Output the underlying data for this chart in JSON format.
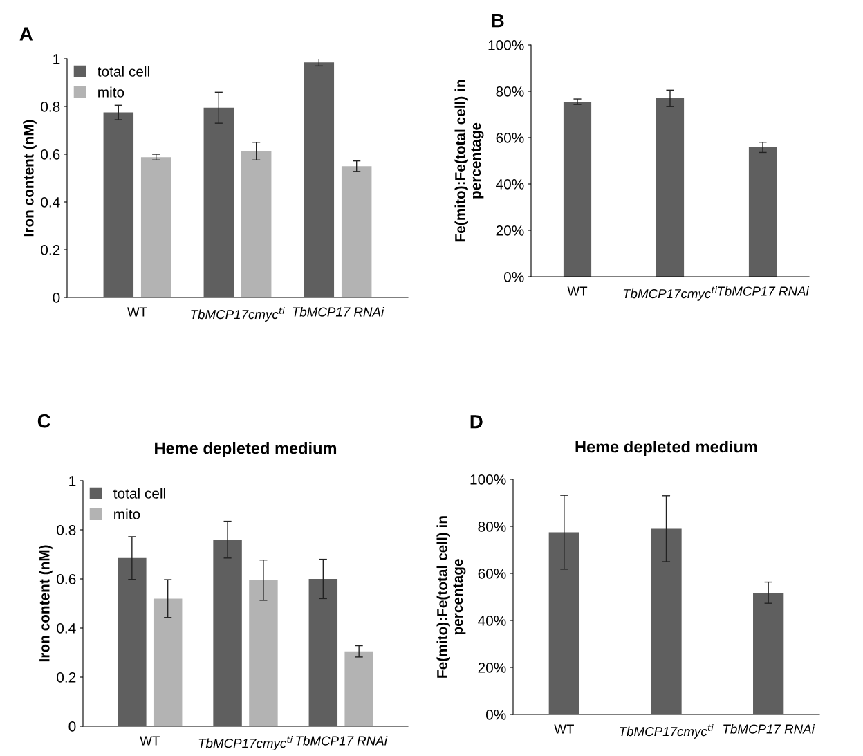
{
  "chart_data": [
    {
      "type": "bar",
      "annotations": [
        "A"
      ],
      "ylabel": "Iron content (nM)",
      "categories": [
        "WT",
        "TbMCP17cmyc$^{ti}$",
        "TbMCP17 RNAi"
      ],
      "ylim": [
        0,
        1
      ],
      "yticks": [
        0,
        0.2,
        0.4,
        0.6,
        0.8,
        1
      ],
      "legend": "top left",
      "grid": false,
      "series": [
        {
          "name": "total cell",
          "color": "#5f5f5f",
          "values": [
            0.775,
            0.795,
            0.985
          ],
          "errors": [
            0.03,
            0.065,
            0.015
          ]
        },
        {
          "name": "mito",
          "color": "#b3b3b3",
          "values": [
            0.588,
            0.613,
            0.55
          ],
          "errors": [
            0.012,
            0.037,
            0.022
          ]
        }
      ]
    },
    {
      "type": "bar",
      "annotations": [
        "B"
      ],
      "ylabel": "Fe(mito):Fe(total cell) in\npercentage",
      "categories": [
        "WT",
        "TbMCP17cmyc$^{ti}$",
        "TbMCP17 RNAi"
      ],
      "ylim": [
        0,
        100
      ],
      "yticks": [
        {
          "value": 0,
          "label": "0%"
        },
        {
          "value": 20,
          "label": "20%"
        },
        {
          "value": 40,
          "label": "40%"
        },
        {
          "value": 60,
          "label": "60%"
        },
        {
          "value": 80,
          "label": "80%"
        },
        {
          "value": 100,
          "label": "100%"
        }
      ],
      "grid": false,
      "series": [
        {
          "color": "#5f5f5f",
          "values": [
            75.5,
            77,
            55.8
          ],
          "errors": [
            1.2,
            3.5,
            2.2
          ]
        }
      ]
    },
    {
      "type": "bar",
      "title": "Heme depleted medium",
      "annotations": [
        "C"
      ],
      "ylabel": "Iron content (nM)",
      "categories": [
        "WT",
        "TbMCP17cmyc$^{ti}$",
        "TbMCP17 RNAi"
      ],
      "ylim": [
        0,
        1
      ],
      "yticks": [
        0,
        0.2,
        0.4,
        0.6,
        0.8,
        1
      ],
      "legend": "top left",
      "grid": false,
      "series": [
        {
          "name": "total cell",
          "color": "#5f5f5f",
          "values": [
            0.685,
            0.76,
            0.6
          ],
          "errors": [
            0.087,
            0.075,
            0.08
          ]
        },
        {
          "name": "mito",
          "color": "#b3b3b3",
          "values": [
            0.52,
            0.595,
            0.305
          ],
          "errors": [
            0.077,
            0.082,
            0.023
          ]
        }
      ]
    },
    {
      "type": "bar",
      "title": "Heme depleted medium",
      "annotations": [
        "D"
      ],
      "ylabel": "Fe(mito):Fe(total cell) in\npercentage",
      "categories": [
        "WT",
        "TbMCP17cmyc$^{ti}$",
        "TbMCP17 RNAi"
      ],
      "ylim": [
        0,
        100
      ],
      "yticks": [
        {
          "value": 0,
          "label": "0%"
        },
        {
          "value": 20,
          "label": "20%"
        },
        {
          "value": 40,
          "label": "40%"
        },
        {
          "value": 60,
          "label": "60%"
        },
        {
          "value": 80,
          "label": "80%"
        },
        {
          "value": 100,
          "label": "100%"
        }
      ],
      "grid": false,
      "series": [
        {
          "color": "#5f5f5f",
          "values": [
            77.5,
            79,
            51.8
          ],
          "errors": [
            15.7,
            14,
            4.5
          ]
        }
      ]
    }
  ]
}
